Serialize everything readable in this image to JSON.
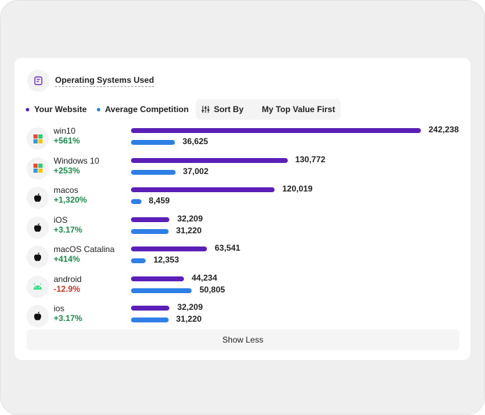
{
  "widget": {
    "title": "Operating Systems Used",
    "legend": {
      "you": "Your Website",
      "avg": "Average Competition"
    },
    "sort_label": "Sort By",
    "sort_value": "My Top Value First",
    "show_less": "Show Less"
  },
  "colors": {
    "you": "#5b1fb8",
    "avg": "#2e7fe6",
    "positive": "#1e8a4c",
    "negative": "#c0392b"
  },
  "chart_data": {
    "type": "bar",
    "max_value": 242238,
    "rows": [
      {
        "name": "win10",
        "change": "+561%",
        "positive": true,
        "icon": "windows-icon",
        "you": 242238,
        "you_label": "242,238",
        "avg": 36625,
        "avg_label": "36,625"
      },
      {
        "name": "Windows 10",
        "change": "+253%",
        "positive": true,
        "icon": "windows-icon",
        "you": 130772,
        "you_label": "130,772",
        "avg": 37002,
        "avg_label": "37,002"
      },
      {
        "name": "macos",
        "change": "+1,320%",
        "positive": true,
        "icon": "apple-icon",
        "you": 120019,
        "you_label": "120,019",
        "avg": 8459,
        "avg_label": "8,459"
      },
      {
        "name": "iOS",
        "change": "+3.17%",
        "positive": true,
        "icon": "apple-icon",
        "you": 32209,
        "you_label": "32,209",
        "avg": 31220,
        "avg_label": "31,220"
      },
      {
        "name": "macOS Catalina",
        "change": "+414%",
        "positive": true,
        "icon": "apple-icon",
        "you": 63541,
        "you_label": "63,541",
        "avg": 12353,
        "avg_label": "12,353"
      },
      {
        "name": "android",
        "change": "-12.9%",
        "positive": false,
        "icon": "android-icon",
        "you": 44234,
        "you_label": "44,234",
        "avg": 50805,
        "avg_label": "50,805"
      },
      {
        "name": "ios",
        "change": "+3.17%",
        "positive": true,
        "icon": "apple-icon",
        "you": 32209,
        "you_label": "32,209",
        "avg": 31220,
        "avg_label": "31,220"
      }
    ]
  }
}
